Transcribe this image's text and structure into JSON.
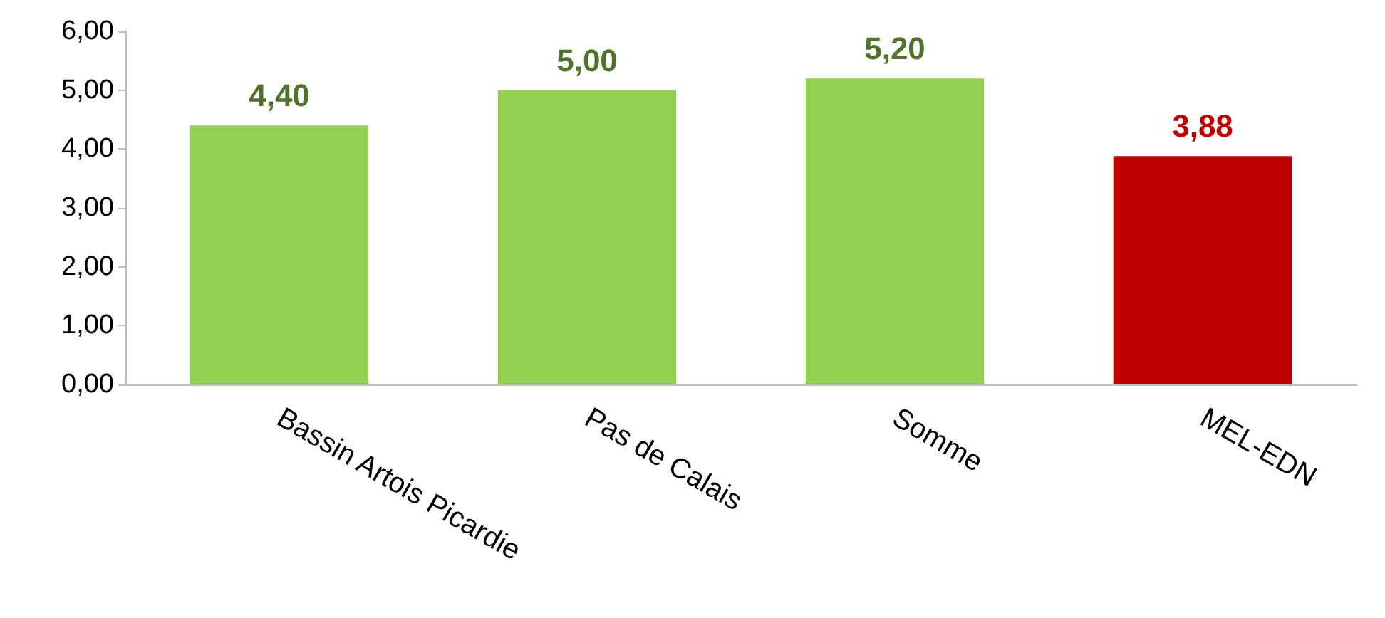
{
  "chart_data": {
    "type": "bar",
    "categories": [
      "Bassin Artois Picardie",
      "Pas de Calais",
      "Somme",
      "MEL-EDN"
    ],
    "values": [
      4.4,
      5.0,
      5.2,
      3.88
    ],
    "colors": [
      "#92d050",
      "#92d050",
      "#92d050",
      "#c00000"
    ],
    "value_labels": [
      "4,40",
      "5,00",
      "5,20",
      "3,88"
    ],
    "ylim": [
      0,
      6
    ],
    "yticks": [
      {
        "value": 0,
        "label": "0,00"
      },
      {
        "value": 1,
        "label": "1,00"
      },
      {
        "value": 2,
        "label": "2,00"
      },
      {
        "value": 3,
        "label": "3,00"
      },
      {
        "value": 4,
        "label": "4,00"
      },
      {
        "value": 5,
        "label": "5,00"
      },
      {
        "value": 6,
        "label": "6,00"
      }
    ],
    "grid": false
  }
}
